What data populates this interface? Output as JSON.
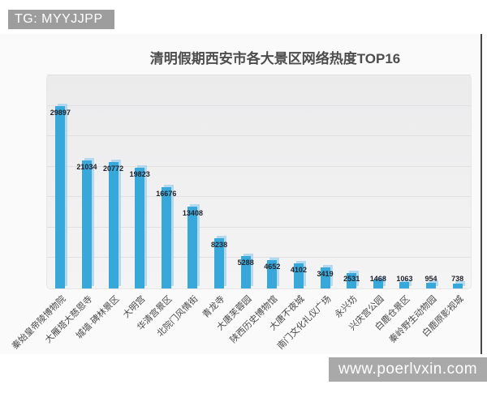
{
  "header": {
    "badge": "TG: MYYJJPP"
  },
  "footer": {
    "url": "www.poerlvxin.com"
  },
  "chart_data": {
    "type": "bar",
    "title": "清明假期西安市各大景区网络热度TOP16",
    "categories": [
      "秦始皇帝陵博物院",
      "大雁塔大慈恩寺",
      "城墙·碑林景区",
      "大明宫",
      "华清宫景区",
      "北院门风情街",
      "青龙寺",
      "大唐芙蓉园",
      "陕西历史博物馆",
      "大唐不夜城",
      "南门文化礼仪广场",
      "永兴坊",
      "兴庆宫公园",
      "白鹿仓景区",
      "秦岭野生动物园",
      "白鹿原影视城"
    ],
    "values": [
      29897,
      21034,
      20772,
      19823,
      16676,
      13408,
      8238,
      5288,
      4652,
      4102,
      3419,
      2531,
      1468,
      1063,
      954,
      738
    ],
    "xlabel": "",
    "ylabel": "",
    "ylim": [
      0,
      35000
    ],
    "grid_step": 5000,
    "grid": "horizontal",
    "legend_position": "none",
    "value_labels": "on",
    "x_label_rotation_deg": -45,
    "bar_color": "#38a7da",
    "bar_halo_color": "#a9d4ec"
  },
  "colors": {
    "badge_bg": "#9d9d9d",
    "badge_text": "#ffffff",
    "footer_bg": "#a9a9a9",
    "title_text": "#4d4d4d",
    "content_bg": "#fafafa",
    "right_border": "#474747",
    "plot_bg": "#efeff0",
    "gridline": "#e0e0e2",
    "value_label": "#23232b",
    "axis_label": "#4a4a4a"
  }
}
